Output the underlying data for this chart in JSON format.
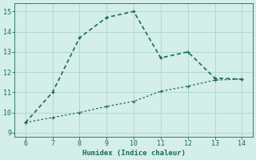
{
  "x": [
    6,
    7,
    8,
    9,
    10,
    11,
    12,
    13,
    14
  ],
  "y_line1": [
    9.5,
    11.0,
    13.7,
    14.7,
    15.0,
    12.7,
    13.0,
    11.7,
    11.65
  ],
  "y_line2": [
    9.5,
    9.75,
    10.0,
    10.3,
    10.55,
    11.05,
    11.3,
    11.6,
    11.65
  ],
  "line_color": "#1a6b5a",
  "bg_color": "#d4eeea",
  "grid_color": "#b0d8d2",
  "xlabel": "Humidex (Indice chaleur)",
  "xlim": [
    5.6,
    14.4
  ],
  "ylim": [
    8.8,
    15.4
  ],
  "xticks": [
    6,
    7,
    8,
    9,
    10,
    11,
    12,
    13,
    14
  ],
  "yticks": [
    9,
    10,
    11,
    12,
    13,
    14,
    15
  ],
  "markersize": 3.5,
  "linewidth1": 1.2,
  "linewidth2": 0.9
}
